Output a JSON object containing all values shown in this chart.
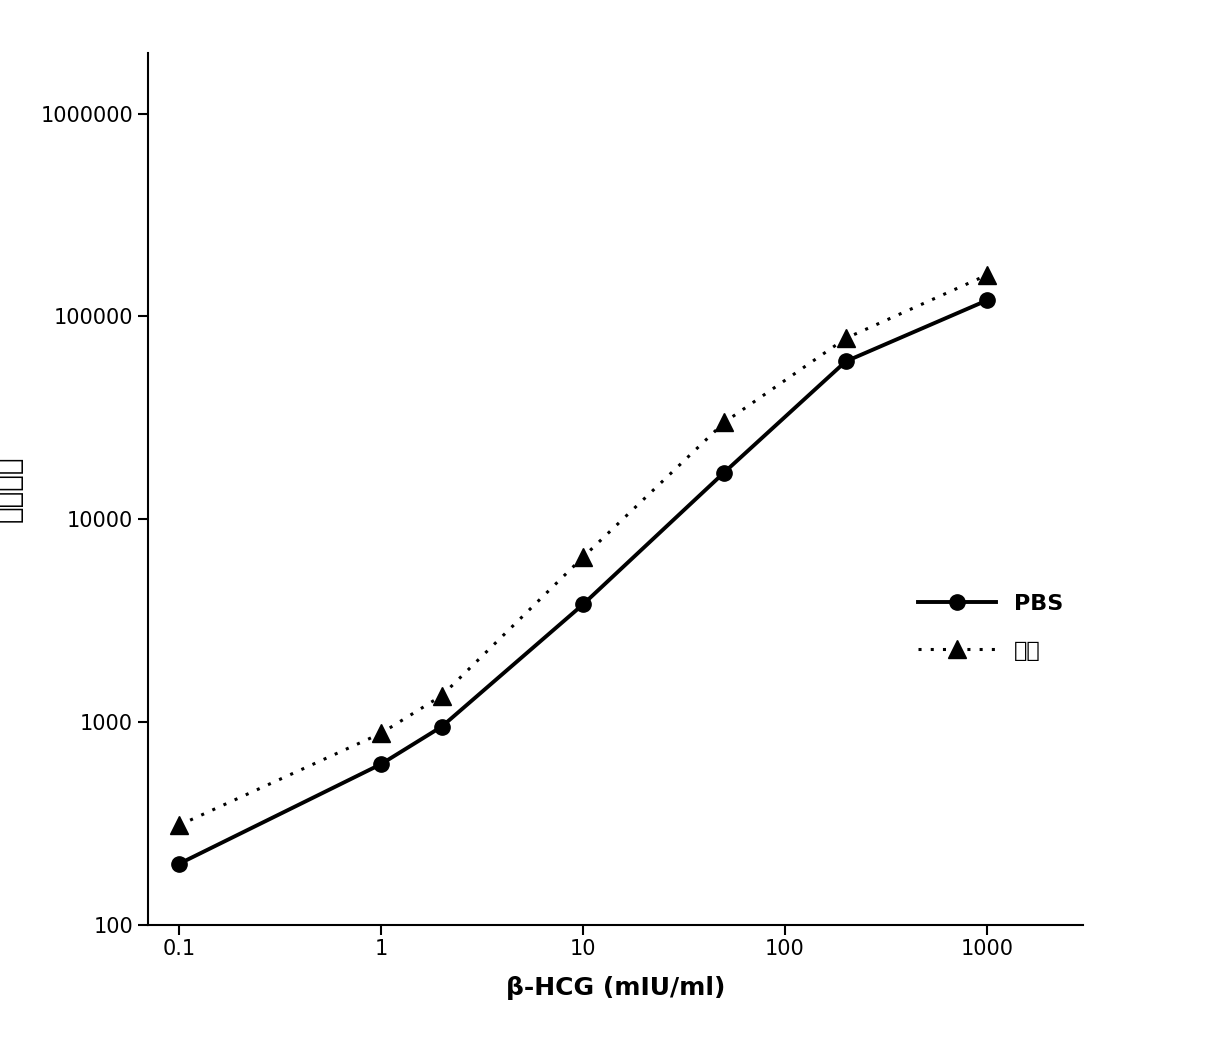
{
  "pbs_x": [
    0.1,
    1,
    2,
    10,
    50,
    200,
    1000
  ],
  "pbs_y": [
    200,
    620,
    950,
    3800,
    17000,
    60000,
    120000
  ],
  "serum_x": [
    0.1,
    1,
    2,
    10,
    50,
    200,
    1000
  ],
  "serum_y": [
    310,
    880,
    1350,
    6500,
    30000,
    78000,
    160000
  ],
  "xlabel": "β-HCG (mIU/ml)",
  "ylabel": "发光强度",
  "xlim": [
    0.07,
    3000
  ],
  "ylim": [
    100,
    2000000
  ],
  "legend_pbs": "PBS",
  "legend_serum": "血清",
  "pbs_color": "#000000",
  "serum_color": "#000000",
  "background_color": "#ffffff",
  "yticks": [
    100,
    1000,
    10000,
    100000,
    1000000
  ],
  "xticks": [
    0.1,
    1,
    10,
    100,
    1000
  ]
}
